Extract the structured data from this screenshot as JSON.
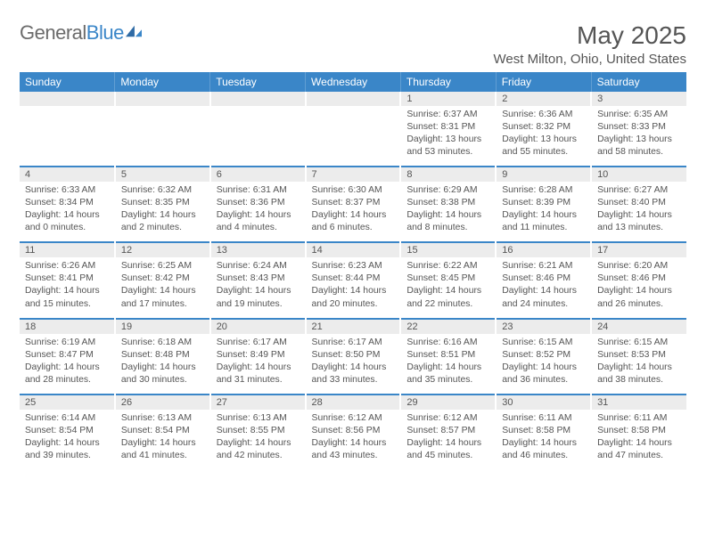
{
  "brand": {
    "name_part1": "General",
    "name_part2": "Blue"
  },
  "title": "May 2025",
  "location": "West Milton, Ohio, United States",
  "colors": {
    "header_bg": "#3a86c8",
    "header_fg": "#ffffff",
    "daynum_bg": "#ececec",
    "text": "#555555",
    "logo_gray": "#6b6b6b",
    "logo_blue": "#3a86c8",
    "row_border": "#3a86c8"
  },
  "days_of_week": [
    "Sunday",
    "Monday",
    "Tuesday",
    "Wednesday",
    "Thursday",
    "Friday",
    "Saturday"
  ],
  "weeks": [
    [
      null,
      null,
      null,
      null,
      {
        "n": "1",
        "sunrise": "6:37 AM",
        "sunset": "8:31 PM",
        "daylight": "13 hours and 53 minutes."
      },
      {
        "n": "2",
        "sunrise": "6:36 AM",
        "sunset": "8:32 PM",
        "daylight": "13 hours and 55 minutes."
      },
      {
        "n": "3",
        "sunrise": "6:35 AM",
        "sunset": "8:33 PM",
        "daylight": "13 hours and 58 minutes."
      }
    ],
    [
      {
        "n": "4",
        "sunrise": "6:33 AM",
        "sunset": "8:34 PM",
        "daylight": "14 hours and 0 minutes."
      },
      {
        "n": "5",
        "sunrise": "6:32 AM",
        "sunset": "8:35 PM",
        "daylight": "14 hours and 2 minutes."
      },
      {
        "n": "6",
        "sunrise": "6:31 AM",
        "sunset": "8:36 PM",
        "daylight": "14 hours and 4 minutes."
      },
      {
        "n": "7",
        "sunrise": "6:30 AM",
        "sunset": "8:37 PM",
        "daylight": "14 hours and 6 minutes."
      },
      {
        "n": "8",
        "sunrise": "6:29 AM",
        "sunset": "8:38 PM",
        "daylight": "14 hours and 8 minutes."
      },
      {
        "n": "9",
        "sunrise": "6:28 AM",
        "sunset": "8:39 PM",
        "daylight": "14 hours and 11 minutes."
      },
      {
        "n": "10",
        "sunrise": "6:27 AM",
        "sunset": "8:40 PM",
        "daylight": "14 hours and 13 minutes."
      }
    ],
    [
      {
        "n": "11",
        "sunrise": "6:26 AM",
        "sunset": "8:41 PM",
        "daylight": "14 hours and 15 minutes."
      },
      {
        "n": "12",
        "sunrise": "6:25 AM",
        "sunset": "8:42 PM",
        "daylight": "14 hours and 17 minutes."
      },
      {
        "n": "13",
        "sunrise": "6:24 AM",
        "sunset": "8:43 PM",
        "daylight": "14 hours and 19 minutes."
      },
      {
        "n": "14",
        "sunrise": "6:23 AM",
        "sunset": "8:44 PM",
        "daylight": "14 hours and 20 minutes."
      },
      {
        "n": "15",
        "sunrise": "6:22 AM",
        "sunset": "8:45 PM",
        "daylight": "14 hours and 22 minutes."
      },
      {
        "n": "16",
        "sunrise": "6:21 AM",
        "sunset": "8:46 PM",
        "daylight": "14 hours and 24 minutes."
      },
      {
        "n": "17",
        "sunrise": "6:20 AM",
        "sunset": "8:46 PM",
        "daylight": "14 hours and 26 minutes."
      }
    ],
    [
      {
        "n": "18",
        "sunrise": "6:19 AM",
        "sunset": "8:47 PM",
        "daylight": "14 hours and 28 minutes."
      },
      {
        "n": "19",
        "sunrise": "6:18 AM",
        "sunset": "8:48 PM",
        "daylight": "14 hours and 30 minutes."
      },
      {
        "n": "20",
        "sunrise": "6:17 AM",
        "sunset": "8:49 PM",
        "daylight": "14 hours and 31 minutes."
      },
      {
        "n": "21",
        "sunrise": "6:17 AM",
        "sunset": "8:50 PM",
        "daylight": "14 hours and 33 minutes."
      },
      {
        "n": "22",
        "sunrise": "6:16 AM",
        "sunset": "8:51 PM",
        "daylight": "14 hours and 35 minutes."
      },
      {
        "n": "23",
        "sunrise": "6:15 AM",
        "sunset": "8:52 PM",
        "daylight": "14 hours and 36 minutes."
      },
      {
        "n": "24",
        "sunrise": "6:15 AM",
        "sunset": "8:53 PM",
        "daylight": "14 hours and 38 minutes."
      }
    ],
    [
      {
        "n": "25",
        "sunrise": "6:14 AM",
        "sunset": "8:54 PM",
        "daylight": "14 hours and 39 minutes."
      },
      {
        "n": "26",
        "sunrise": "6:13 AM",
        "sunset": "8:54 PM",
        "daylight": "14 hours and 41 minutes."
      },
      {
        "n": "27",
        "sunrise": "6:13 AM",
        "sunset": "8:55 PM",
        "daylight": "14 hours and 42 minutes."
      },
      {
        "n": "28",
        "sunrise": "6:12 AM",
        "sunset": "8:56 PM",
        "daylight": "14 hours and 43 minutes."
      },
      {
        "n": "29",
        "sunrise": "6:12 AM",
        "sunset": "8:57 PM",
        "daylight": "14 hours and 45 minutes."
      },
      {
        "n": "30",
        "sunrise": "6:11 AM",
        "sunset": "8:58 PM",
        "daylight": "14 hours and 46 minutes."
      },
      {
        "n": "31",
        "sunrise": "6:11 AM",
        "sunset": "8:58 PM",
        "daylight": "14 hours and 47 minutes."
      }
    ]
  ],
  "labels": {
    "sunrise": "Sunrise: ",
    "sunset": "Sunset: ",
    "daylight": "Daylight: "
  }
}
